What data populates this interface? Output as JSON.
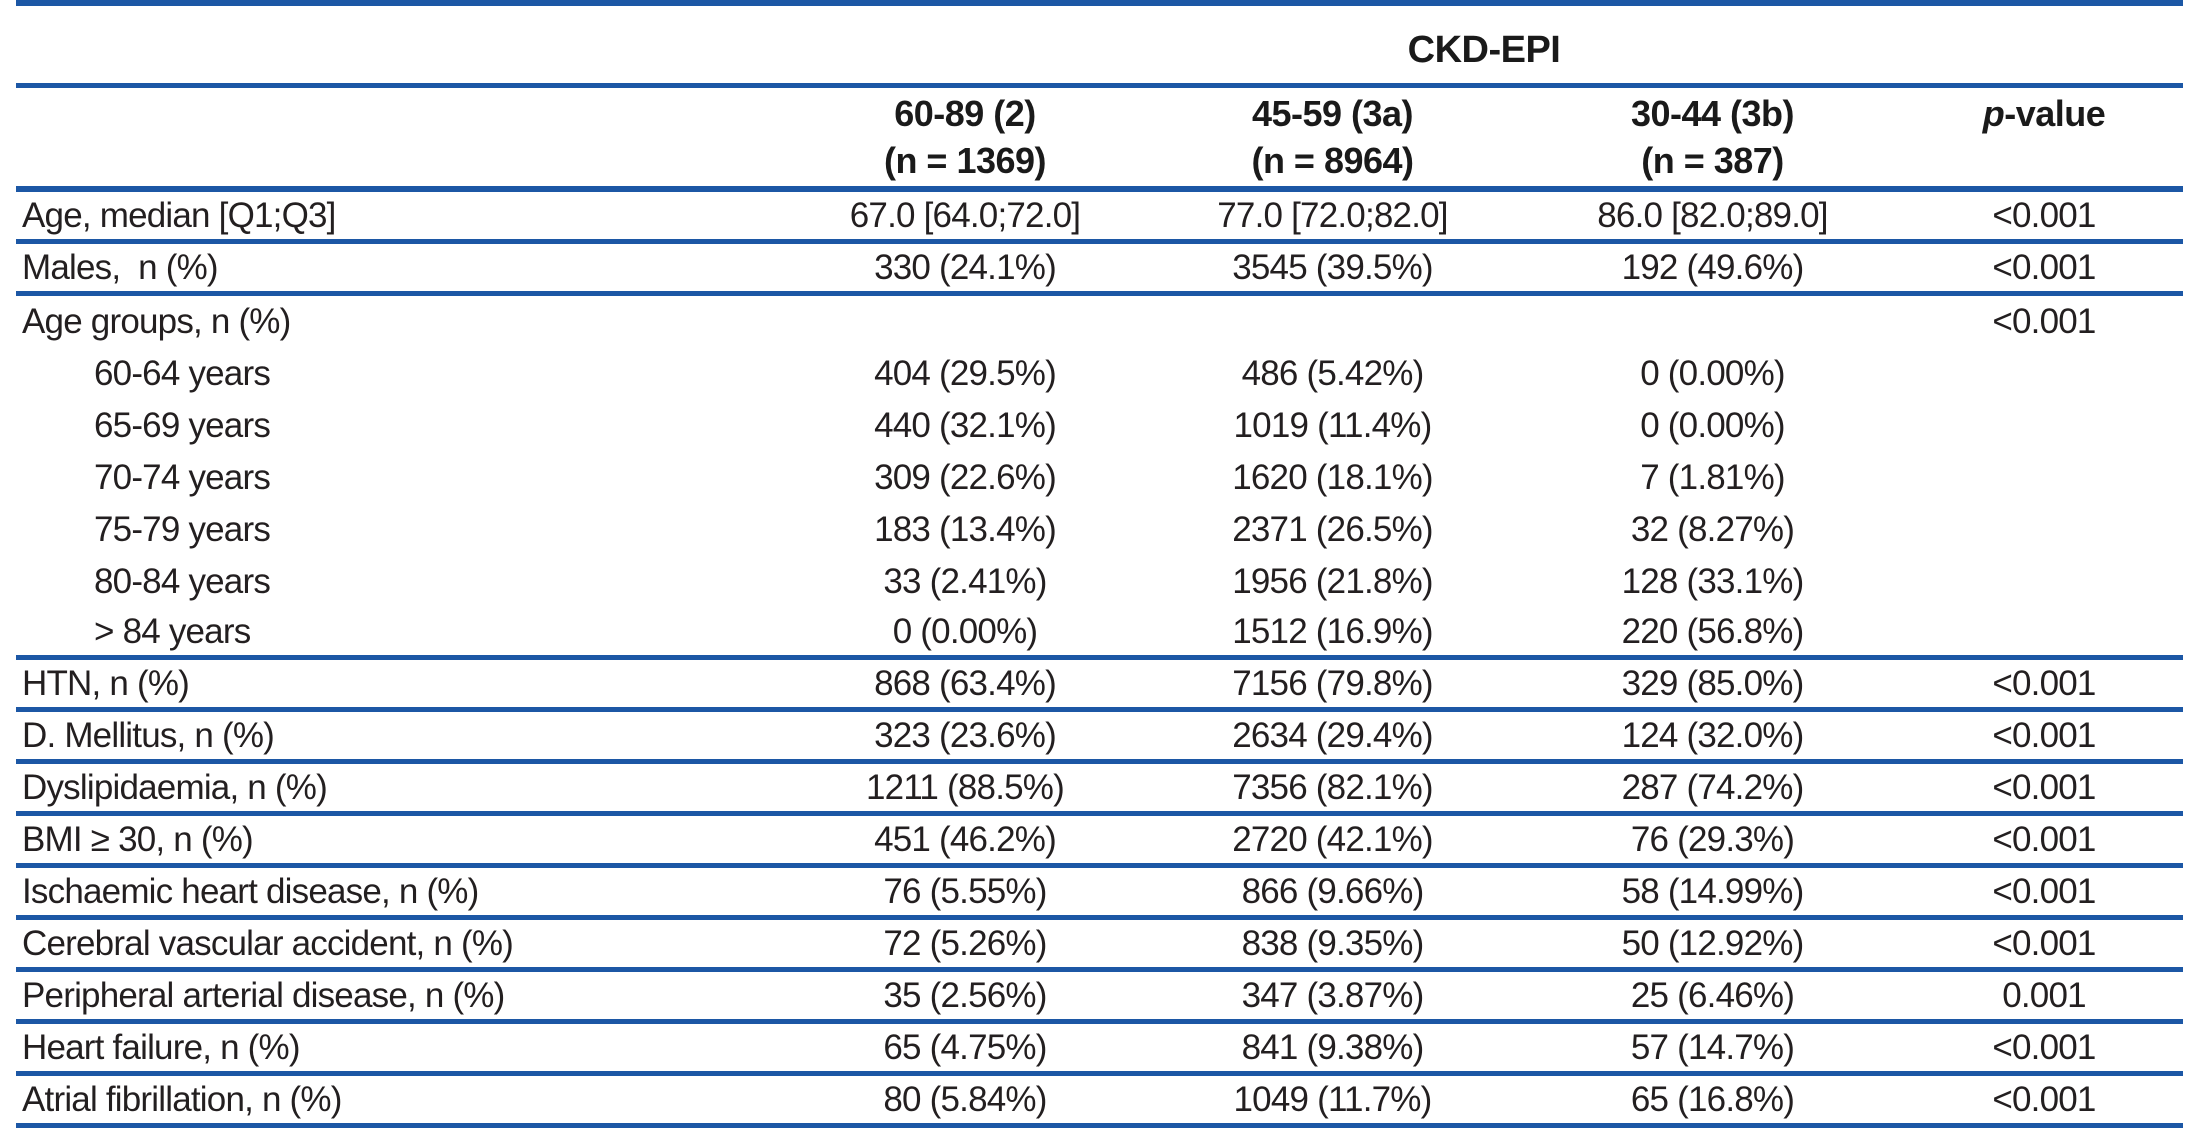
{
  "table": {
    "group_header": "CKD-EPI",
    "rule_color": "#1c57a5",
    "columns": [
      {
        "range": "60-89 (2)",
        "n": "(n = 1369)"
      },
      {
        "range": "45-59 (3a)",
        "n": "(n = 8964)"
      },
      {
        "range": "30-44 (3b)",
        "n": "(n = 387)"
      }
    ],
    "pvalue_header": {
      "italic": "p",
      "rest": "-value"
    },
    "rows": [
      {
        "label": "Age, median [Q1;Q3]",
        "indent": false,
        "values": [
          "67.0 [64.0;72.0]",
          "77.0 [72.0;82.0]",
          "86.0 [82.0;89.0]"
        ],
        "p": "<0.001",
        "divider": true
      },
      {
        "label": "Males,  n (%)",
        "indent": false,
        "values": [
          "330 (24.1%)",
          "3545 (39.5%)",
          "192 (49.6%)"
        ],
        "p": "<0.001",
        "divider": true
      },
      {
        "label": "Age groups, n (%)",
        "indent": false,
        "values": [
          "",
          "",
          ""
        ],
        "p": "<0.001",
        "divider": false
      },
      {
        "label": "60-64 years",
        "indent": true,
        "values": [
          "404 (29.5%)",
          "486 (5.42%)",
          "0 (0.00%)"
        ],
        "p": "",
        "divider": false
      },
      {
        "label": "65-69 years",
        "indent": true,
        "values": [
          "440 (32.1%)",
          "1019 (11.4%)",
          "0 (0.00%)"
        ],
        "p": "",
        "divider": false
      },
      {
        "label": "70-74 years",
        "indent": true,
        "values": [
          "309 (22.6%)",
          "1620 (18.1%)",
          "7 (1.81%)"
        ],
        "p": "",
        "divider": false
      },
      {
        "label": "75-79 years",
        "indent": true,
        "values": [
          "183 (13.4%)",
          "2371 (26.5%)",
          "32 (8.27%)"
        ],
        "p": "",
        "divider": false
      },
      {
        "label": "80-84 years",
        "indent": true,
        "values": [
          "33 (2.41%)",
          "1956 (21.8%)",
          "128 (33.1%)"
        ],
        "p": "",
        "divider": false
      },
      {
        "label": "> 84 years",
        "indent": true,
        "values": [
          "0 (0.00%)",
          "1512 (16.9%)",
          "220 (56.8%)"
        ],
        "p": "",
        "divider": true
      },
      {
        "label": "HTN, n (%)",
        "indent": false,
        "values": [
          "868 (63.4%)",
          "7156 (79.8%)",
          "329 (85.0%)"
        ],
        "p": "<0.001",
        "divider": true
      },
      {
        "label": "D. Mellitus, n (%)",
        "indent": false,
        "values": [
          "323 (23.6%)",
          "2634 (29.4%)",
          "124 (32.0%)"
        ],
        "p": "<0.001",
        "divider": true
      },
      {
        "label": "Dyslipidaemia, n (%)",
        "indent": false,
        "values": [
          "1211 (88.5%)",
          "7356 (82.1%)",
          "287 (74.2%)"
        ],
        "p": "<0.001",
        "divider": true
      },
      {
        "label": "BMI ≥ 30, n (%)",
        "indent": false,
        "values": [
          "451 (46.2%)",
          "2720 (42.1%)",
          "76 (29.3%)"
        ],
        "p": "<0.001",
        "divider": true
      },
      {
        "label": "Ischaemic heart disease, n (%)",
        "indent": false,
        "values": [
          "76 (5.55%)",
          "866 (9.66%)",
          "58 (14.99%)"
        ],
        "p": "<0.001",
        "divider": true
      },
      {
        "label": "Cerebral vascular accident, n (%)",
        "indent": false,
        "values": [
          "72 (5.26%)",
          "838 (9.35%)",
          "50 (12.92%)"
        ],
        "p": "<0.001",
        "divider": true
      },
      {
        "label": "Peripheral arterial disease, n (%)",
        "indent": false,
        "values": [
          "35 (2.56%)",
          "347 (3.87%)",
          "25 (6.46%)"
        ],
        "p": "0.001",
        "divider": true
      },
      {
        "label": "Heart failure, n (%)",
        "indent": false,
        "values": [
          "65 (4.75%)",
          "841 (9.38%)",
          "57 (14.7%)"
        ],
        "p": "<0.001",
        "divider": true
      },
      {
        "label": "Atrial fibrillation, n (%)",
        "indent": false,
        "values": [
          "80 (5.84%)",
          "1049 (11.7%)",
          "65 (16.8%)"
        ],
        "p": "<0.001",
        "divider": true
      }
    ]
  }
}
